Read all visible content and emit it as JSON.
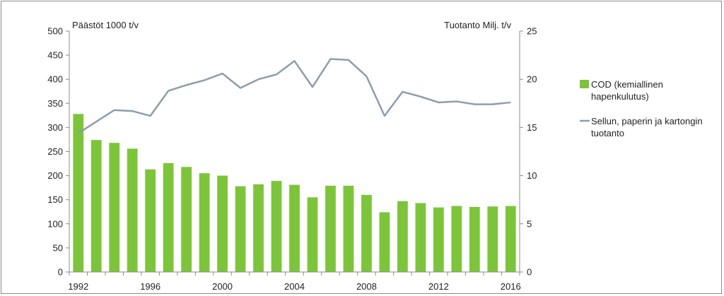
{
  "chart_data": {
    "type": "bar",
    "categories": [
      1992,
      1993,
      1994,
      1995,
      1996,
      1997,
      1998,
      1999,
      2000,
      2001,
      2002,
      2003,
      2004,
      2005,
      2006,
      2007,
      2008,
      2009,
      2010,
      2011,
      2012,
      2013,
      2014,
      2015,
      2016
    ],
    "x_tick_labels": [
      "1992",
      "1996",
      "2000",
      "2004",
      "2008",
      "2012",
      "2016"
    ],
    "left_axis": {
      "label": "Päästöt 1000 t/v",
      "ylim": [
        0,
        500
      ],
      "ticks": [
        "0",
        "50",
        "100",
        "150",
        "200",
        "250",
        "300",
        "350",
        "400",
        "450",
        "500"
      ]
    },
    "right_axis": {
      "label": "Tuotanto Milj. t/v",
      "ylim": [
        0,
        25
      ],
      "ticks": [
        "0",
        "5",
        "10",
        "15",
        "20",
        "25"
      ]
    },
    "series": [
      {
        "name_lines": [
          "COD (kemiallinen",
          "hapenkulutus)"
        ],
        "kind": "bar",
        "axis": "left",
        "color": "#7cc53b",
        "values": [
          328,
          274,
          268,
          256,
          213,
          226,
          218,
          205,
          200,
          178,
          182,
          189,
          181,
          155,
          179,
          179,
          160,
          124,
          147,
          143,
          134,
          137,
          135,
          136,
          137
        ]
      },
      {
        "name_lines": [
          "Sellun, paperin ja kartongin",
          "tuotanto"
        ],
        "kind": "line",
        "axis": "right",
        "color": "#8c9eab",
        "values": [
          14.4,
          15.6,
          16.8,
          16.7,
          16.2,
          18.8,
          19.4,
          19.9,
          20.6,
          19.1,
          20.0,
          20.5,
          21.9,
          19.2,
          22.1,
          22.0,
          20.3,
          16.2,
          18.7,
          18.2,
          17.6,
          17.7,
          17.4,
          17.4,
          17.6
        ]
      }
    ],
    "grid": false,
    "legend_position": "right"
  }
}
